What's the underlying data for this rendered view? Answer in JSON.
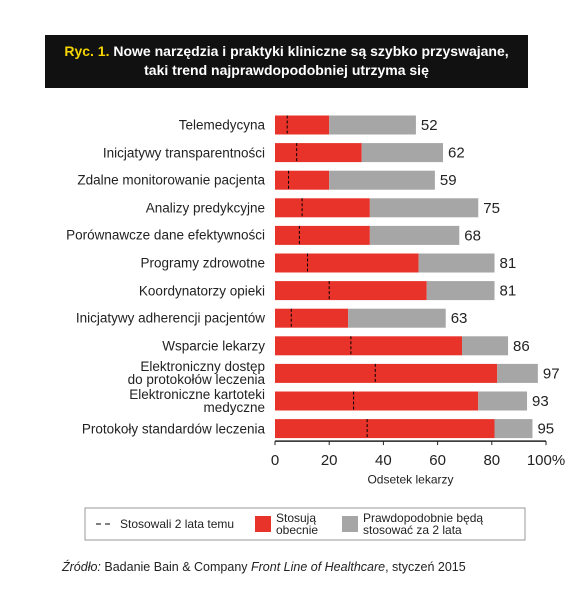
{
  "chart_data": {
    "type": "stacked-bar-horizontal",
    "title_label": "Ryc. 1.",
    "title": "Nowe narzędzia i praktyki kliniczne są szybko przyswajane,\ntaki trend najprawdopodobniej utrzyma się",
    "categories": [
      "Telemedycyna",
      "Inicjatywy transparentności",
      "Zdalne monitorowanie pacjenta",
      "Analizy predykcyjne",
      "Porównawcze dane efektywności",
      "Programy zdrowotne",
      "Koordynatorzy opieki",
      "Inicjatywy adherencji pacjentów",
      "Wsparcie lekarzy",
      "Elektroniczny dostęp\ndo protokołów leczenia",
      "Elektroniczne kartoteki\nmedyczne",
      "Protokoły standardów leczenia"
    ],
    "series": [
      {
        "name": "Stosują\nobecnie",
        "color": "#e8332a",
        "values": [
          20,
          32,
          20,
          35,
          35,
          53,
          56,
          27,
          69,
          82,
          75,
          81
        ]
      },
      {
        "name": "Prawdopodobnie będą\nstosować za 2 lata",
        "color": "#a6a6a6",
        "values": [
          32,
          30,
          39,
          40,
          33,
          28,
          25,
          36,
          17,
          15,
          18,
          14
        ]
      }
    ],
    "totals": [
      52,
      62,
      59,
      75,
      68,
      81,
      81,
      63,
      86,
      97,
      93,
      95
    ],
    "past": {
      "name": "Stosowali 2 lata temu",
      "color": "#000000",
      "values": [
        4.5,
        8,
        5,
        10,
        9,
        12,
        20,
        6,
        28,
        37,
        29,
        34
      ]
    },
    "xlim": [
      0,
      100
    ],
    "xticks": [
      0,
      20,
      40,
      60,
      80,
      {
        "value": 100,
        "label": "100%"
      }
    ],
    "xlabel": "Odsetek lekarzy",
    "source": [
      "Źródło:",
      " Badanie Bain & Company ",
      "Front Line of Healthcare",
      ", styczeń 2015"
    ]
  }
}
